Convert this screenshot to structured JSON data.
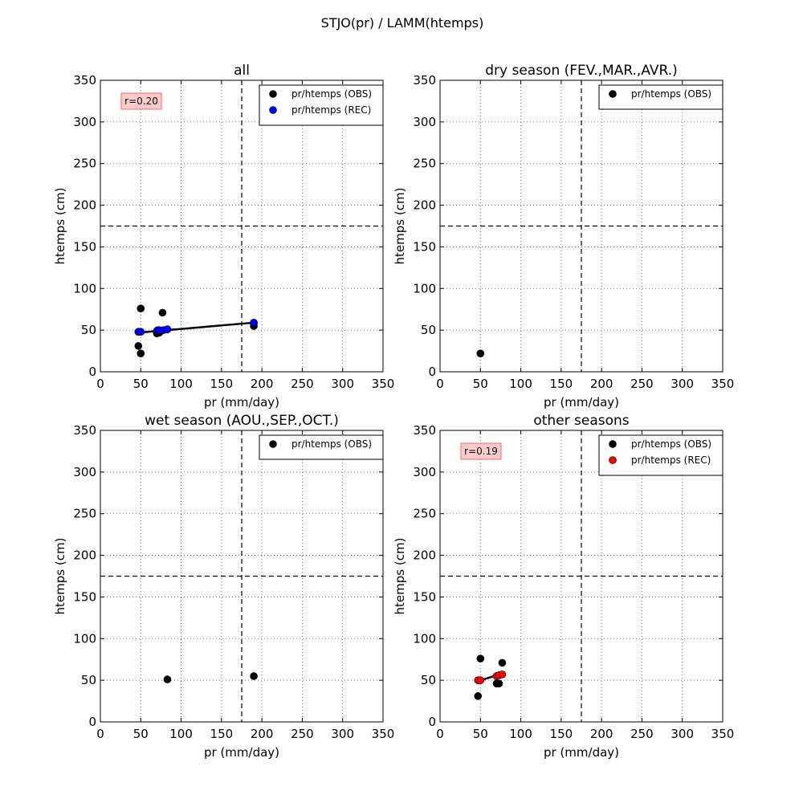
{
  "figure_title": "STJO(pr) / LAMM(htemps)",
  "colors": {
    "obs": "#000000",
    "rec_all": "#0000ff",
    "rec_other": "#ff0000",
    "r_box_fill": "#ffcccc",
    "r_box_edge": "#ff6666",
    "threshold_line": "#000000",
    "grid": "#555555"
  },
  "chart_data": [
    {
      "type": "scatter",
      "title": "all",
      "xlabel": "pr (mm/day)",
      "ylabel": "htemps (cm)",
      "xlim": [
        0,
        350
      ],
      "ylim": [
        0,
        350
      ],
      "xticks": [
        "0",
        "50",
        "100",
        "150",
        "200",
        "250",
        "300",
        "350"
      ],
      "yticks": [
        "0",
        "50",
        "100",
        "150",
        "200",
        "250",
        "300",
        "350"
      ],
      "grid": true,
      "threshold_x": 175,
      "threshold_y": 175,
      "legend_position": "top-right",
      "r_label": "r=0.20",
      "series": [
        {
          "name": "pr/htemps (OBS)",
          "color_key": "obs",
          "x": [
            50,
            77,
            47,
            50,
            70,
            73,
            70,
            83,
            190,
            190
          ],
          "y": [
            76,
            71,
            31,
            22,
            48,
            47,
            46,
            51,
            55,
            58
          ]
        },
        {
          "name": "pr/htemps (REC)",
          "color_key": "rec_all",
          "x": [
            47,
            50,
            70,
            71,
            73,
            78,
            83,
            190
          ],
          "y": [
            48,
            48,
            49,
            50,
            50,
            50,
            51,
            59
          ]
        }
      ],
      "regression": {
        "x": [
          47,
          190
        ],
        "y": [
          47,
          59
        ]
      }
    },
    {
      "type": "scatter",
      "title": "dry season (FEV.,MAR.,AVR.)",
      "xlabel": "pr (mm/day)",
      "ylabel": "htemps (cm)",
      "xlim": [
        0,
        350
      ],
      "ylim": [
        0,
        350
      ],
      "xticks": [
        "0",
        "50",
        "100",
        "150",
        "200",
        "250",
        "300",
        "350"
      ],
      "yticks": [
        "0",
        "50",
        "100",
        "150",
        "200",
        "250",
        "300",
        "350"
      ],
      "grid": true,
      "threshold_x": 175,
      "threshold_y": 175,
      "legend_position": "top-right",
      "r_label": "",
      "series": [
        {
          "name": "pr/htemps (OBS)",
          "color_key": "obs",
          "x": [
            50
          ],
          "y": [
            22
          ]
        }
      ]
    },
    {
      "type": "scatter",
      "title": "wet season (AOU.,SEP.,OCT.)",
      "xlabel": "pr (mm/day)",
      "ylabel": "htemps (cm)",
      "xlim": [
        0,
        350
      ],
      "ylim": [
        0,
        350
      ],
      "xticks": [
        "0",
        "50",
        "100",
        "150",
        "200",
        "250",
        "300",
        "350"
      ],
      "yticks": [
        "0",
        "50",
        "100",
        "150",
        "200",
        "250",
        "300",
        "350"
      ],
      "grid": true,
      "threshold_x": 175,
      "threshold_y": 175,
      "legend_position": "top-right",
      "r_label": "",
      "series": [
        {
          "name": "pr/htemps (OBS)",
          "color_key": "obs",
          "x": [
            83,
            190
          ],
          "y": [
            51,
            55
          ]
        }
      ]
    },
    {
      "type": "scatter",
      "title": "other seasons",
      "xlabel": "pr (mm/day)",
      "ylabel": "htemps (cm)",
      "xlim": [
        0,
        350
      ],
      "ylim": [
        0,
        350
      ],
      "xticks": [
        "0",
        "50",
        "100",
        "150",
        "200",
        "250",
        "300",
        "350"
      ],
      "yticks": [
        "0",
        "50",
        "100",
        "150",
        "200",
        "250",
        "300",
        "350"
      ],
      "grid": true,
      "threshold_x": 175,
      "threshold_y": 175,
      "legend_position": "top-right",
      "r_label": "r=0.19",
      "series": [
        {
          "name": "pr/htemps (OBS)",
          "color_key": "obs",
          "x": [
            50,
            77,
            47,
            70,
            73
          ],
          "y": [
            76,
            71,
            31,
            46,
            46
          ]
        },
        {
          "name": "pr/htemps (REC)",
          "color_key": "rec_other",
          "x": [
            47,
            50,
            70,
            73,
            77
          ],
          "y": [
            50,
            50,
            55,
            56,
            57
          ]
        }
      ],
      "regression": {
        "x": [
          47,
          77
        ],
        "y": [
          49,
          58
        ]
      }
    }
  ]
}
